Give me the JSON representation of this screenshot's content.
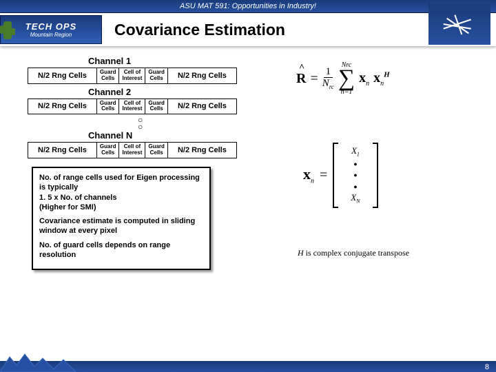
{
  "banner": "ASU MAT 591: Opportunities in Industry!",
  "logo": {
    "main": "TECH OPS",
    "sub": "Mountain Region"
  },
  "title": "Covariance Estimation",
  "channels": [
    {
      "label": "Channel 1"
    },
    {
      "label": "Channel 2"
    },
    {
      "label": "Channel N"
    }
  ],
  "cells": {
    "rng": "N/2 Rng Cells",
    "guard": "Guard\nCells",
    "coi": "Cell of\nInterest"
  },
  "formula": {
    "R": "R",
    "eq": "=",
    "num": "1",
    "den_sym": "N",
    "den_sub": "rc",
    "sig_top": "Nrc",
    "sig_bot": "n=1",
    "x": "x",
    "xsub": "n",
    "H": "H"
  },
  "vector": {
    "x": "x",
    "xsub": "n",
    "eq": "=",
    "top": "X",
    "topsub": "1",
    "bot": "X",
    "botsub": "N"
  },
  "notes": [
    "No. of range cells used for Eigen processing is typically\n1. 5 x No. of channels\n(Higher for SMI)",
    "Covariance estimate is computed in sliding window at every pixel",
    "No. of guard cells depends on range resolution"
  ],
  "footnote_h": "H",
  "footnote_text": " is complex conjugate transpose",
  "page": "8",
  "colors": {
    "banner_bg_top": "#1a3a7a",
    "banner_bg_bot": "#2850a0",
    "cactus": "#4a7a2a"
  }
}
